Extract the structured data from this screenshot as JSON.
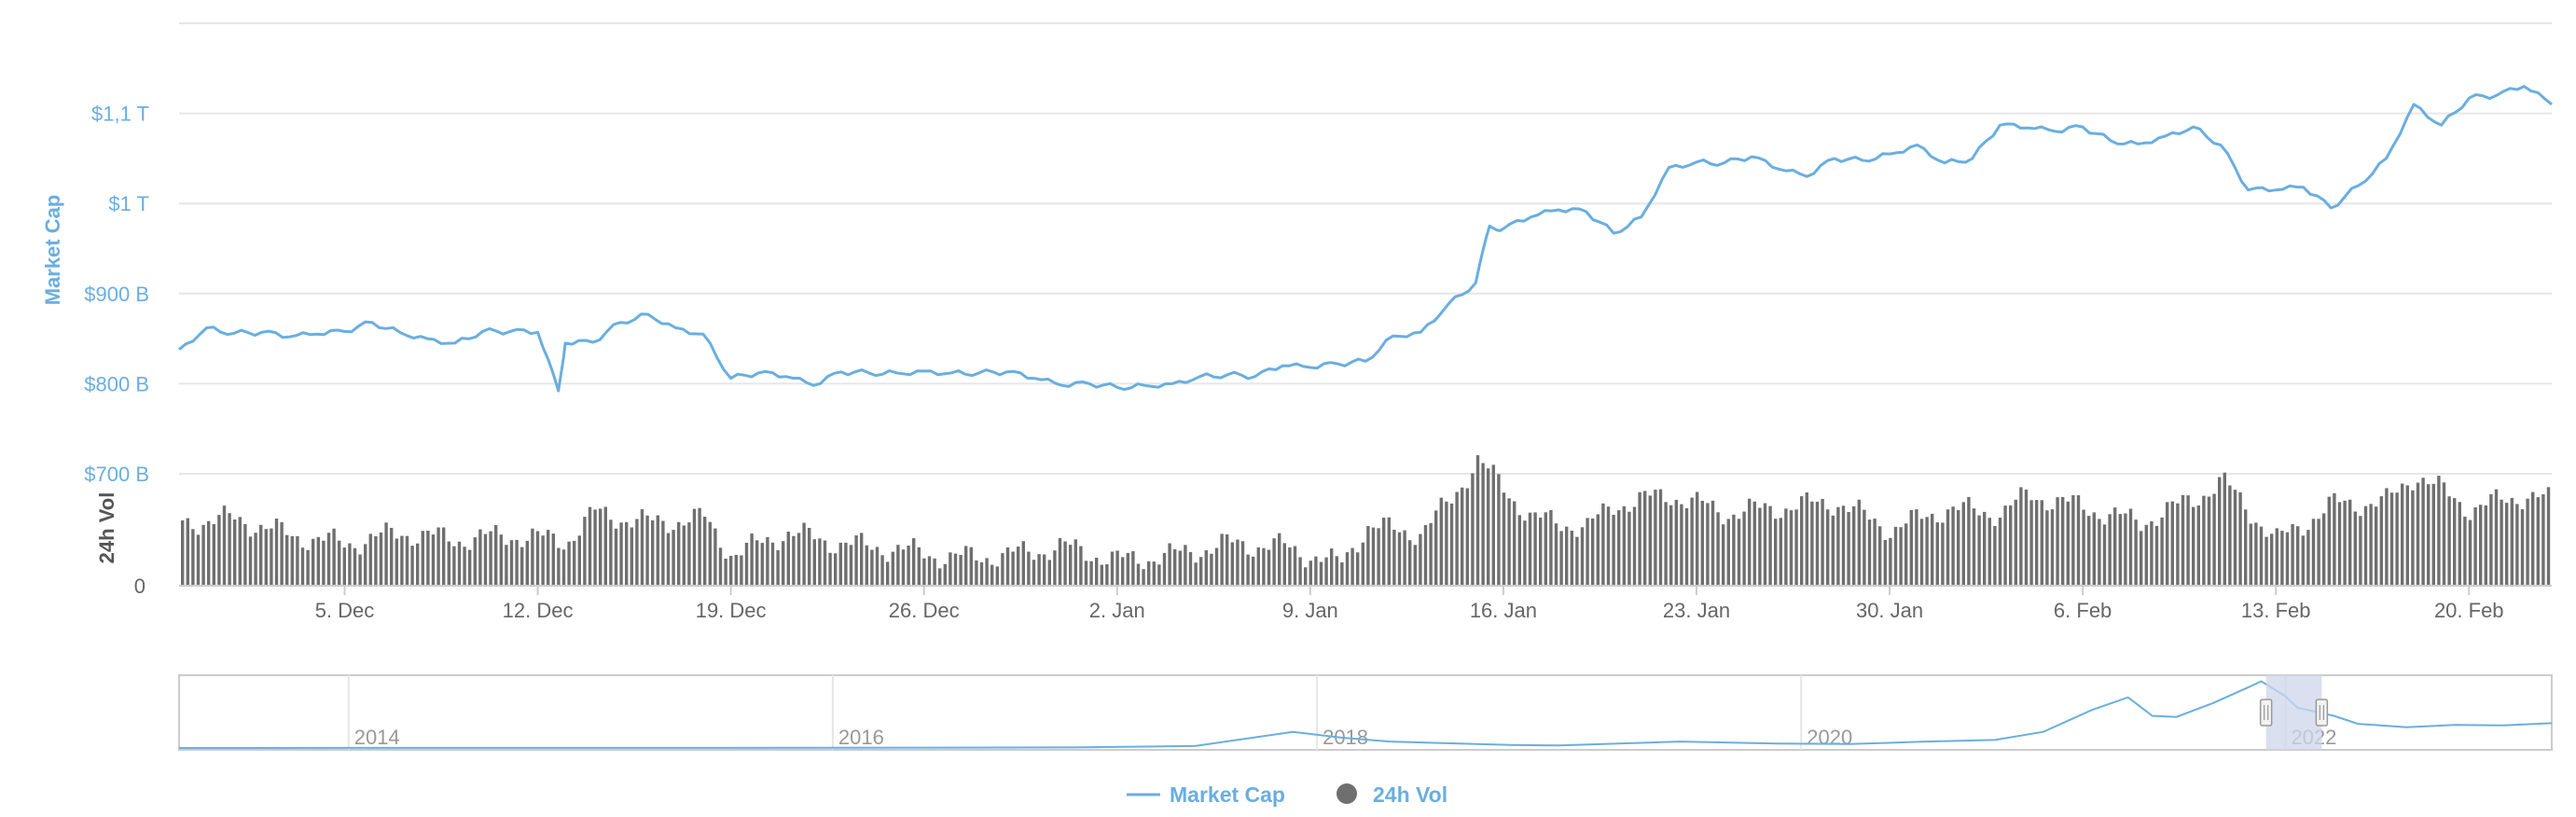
{
  "colors": {
    "market_cap": "#6aaee0",
    "volume": "#6f6f6f",
    "grid": "#e6e6e6",
    "axis_text": "#666666",
    "nav_mask": "#cdd5ea",
    "background": "#ffffff"
  },
  "chart_data": {
    "type": "line",
    "title": "",
    "legend_position": "bottom-center",
    "grid": true,
    "legend": [
      {
        "name": "Market Cap",
        "marker": "line"
      },
      {
        "name": "24h Vol",
        "marker": "circle"
      }
    ],
    "y_axis_market_cap": {
      "label": "Market Cap",
      "range": [
        700,
        1200
      ],
      "ticks": [
        {
          "value": 700,
          "label": "$700 B"
        },
        {
          "value": 800,
          "label": "$800 B"
        },
        {
          "value": 900,
          "label": "$900 B"
        },
        {
          "value": 1000,
          "label": "$1 T"
        },
        {
          "value": 1100,
          "label": "$1,1 T"
        }
      ]
    },
    "y_axis_volume": {
      "label": "24h Vol",
      "ticks": [
        {
          "value": 0,
          "label": "0"
        }
      ]
    },
    "x_axis": {
      "range": [
        "2021-11-29",
        "2022-02-23"
      ],
      "ticks": [
        {
          "date": "2021-12-05",
          "label": "5. Dec"
        },
        {
          "date": "2021-12-12",
          "label": "12. Dec"
        },
        {
          "date": "2021-12-19",
          "label": "19. Dec"
        },
        {
          "date": "2021-12-26",
          "label": "26. Dec"
        },
        {
          "date": "2022-01-02",
          "label": "2. Jan"
        },
        {
          "date": "2022-01-09",
          "label": "9. Jan"
        },
        {
          "date": "2022-01-16",
          "label": "16. Jan"
        },
        {
          "date": "2022-01-23",
          "label": "23. Jan"
        },
        {
          "date": "2022-01-30",
          "label": "30. Jan"
        },
        {
          "date": "2022-02-06",
          "label": "6. Feb"
        },
        {
          "date": "2022-02-13",
          "label": "13. Feb"
        },
        {
          "date": "2022-02-20",
          "label": "20. Feb"
        }
      ]
    },
    "series": [
      {
        "name": "Market Cap",
        "unit": "B USD",
        "points": [
          [
            "2021-11-29",
            838
          ],
          [
            "2021-11-30",
            862
          ],
          [
            "2021-12-01",
            856
          ],
          [
            "2021-12-02",
            857
          ],
          [
            "2021-12-03",
            852
          ],
          [
            "2021-12-04",
            855
          ],
          [
            "2021-12-05",
            858
          ],
          [
            "2021-12-06",
            868
          ],
          [
            "2021-12-07",
            857
          ],
          [
            "2021-12-08",
            850
          ],
          [
            "2021-12-09",
            845
          ],
          [
            "2021-12-10",
            858
          ],
          [
            "2021-12-11",
            858
          ],
          [
            "2021-12-12",
            857
          ],
          [
            "2021-12-12T18",
            792
          ],
          [
            "2021-12-13",
            845
          ],
          [
            "2021-12-14",
            846
          ],
          [
            "2021-12-15",
            868
          ],
          [
            "2021-12-16",
            877
          ],
          [
            "2021-12-17",
            862
          ],
          [
            "2021-12-18",
            855
          ],
          [
            "2021-12-19",
            806
          ],
          [
            "2021-12-20",
            812
          ],
          [
            "2021-12-21",
            808
          ],
          [
            "2021-12-22",
            798
          ],
          [
            "2021-12-23",
            813
          ],
          [
            "2021-12-24",
            812
          ],
          [
            "2021-12-25",
            812
          ],
          [
            "2021-12-26",
            814
          ],
          [
            "2021-12-27",
            812
          ],
          [
            "2021-12-28",
            812
          ],
          [
            "2021-12-29",
            813
          ],
          [
            "2021-12-30",
            806
          ],
          [
            "2021-12-31",
            798
          ],
          [
            "2022-01-01",
            800
          ],
          [
            "2022-01-02",
            796
          ],
          [
            "2022-01-03",
            798
          ],
          [
            "2022-01-04",
            800
          ],
          [
            "2022-01-05",
            808
          ],
          [
            "2022-01-06",
            810
          ],
          [
            "2022-01-07",
            808
          ],
          [
            "2022-01-08",
            820
          ],
          [
            "2022-01-09",
            818
          ],
          [
            "2022-01-10",
            822
          ],
          [
            "2022-01-11",
            825
          ],
          [
            "2022-01-12",
            853
          ],
          [
            "2022-01-13",
            857
          ],
          [
            "2022-01-14",
            888
          ],
          [
            "2022-01-15",
            912
          ],
          [
            "2022-01-15T12",
            975
          ],
          [
            "2022-01-16",
            972
          ],
          [
            "2022-01-17",
            985
          ],
          [
            "2022-01-18",
            993
          ],
          [
            "2022-01-19",
            991
          ],
          [
            "2022-01-20",
            967
          ],
          [
            "2022-01-21",
            985
          ],
          [
            "2022-01-22",
            1040
          ],
          [
            "2022-01-23",
            1046
          ],
          [
            "2022-01-24",
            1045
          ],
          [
            "2022-01-25",
            1052
          ],
          [
            "2022-01-26",
            1038
          ],
          [
            "2022-01-27",
            1030
          ],
          [
            "2022-01-28",
            1050
          ],
          [
            "2022-01-29",
            1048
          ],
          [
            "2022-01-30",
            1055
          ],
          [
            "2022-01-31",
            1065
          ],
          [
            "2022-02-01",
            1045
          ],
          [
            "2022-02-02",
            1050
          ],
          [
            "2022-02-03",
            1087
          ],
          [
            "2022-02-04",
            1084
          ],
          [
            "2022-02-05",
            1080
          ],
          [
            "2022-02-06",
            1085
          ],
          [
            "2022-02-07",
            1070
          ],
          [
            "2022-02-08",
            1066
          ],
          [
            "2022-02-09",
            1075
          ],
          [
            "2022-02-10",
            1085
          ],
          [
            "2022-02-11",
            1065
          ],
          [
            "2022-02-12",
            1015
          ],
          [
            "2022-02-13",
            1015
          ],
          [
            "2022-02-14",
            1018
          ],
          [
            "2022-02-15",
            995
          ],
          [
            "2022-02-16",
            1020
          ],
          [
            "2022-02-17",
            1050
          ],
          [
            "2022-02-18",
            1110
          ],
          [
            "2022-02-19",
            1087
          ],
          [
            "2022-02-20",
            1117
          ],
          [
            "2022-02-21",
            1120
          ],
          [
            "2022-02-22",
            1130
          ],
          [
            "2022-02-23",
            1110
          ]
        ]
      },
      {
        "name": "24h Vol",
        "type": "column",
        "scale": "relative",
        "points": [
          [
            "2021-11-29",
            0.45
          ],
          [
            "2021-12-01",
            0.48
          ],
          [
            "2021-12-03",
            0.36
          ],
          [
            "2021-12-05",
            0.3
          ],
          [
            "2021-12-07",
            0.38
          ],
          [
            "2021-12-09",
            0.33
          ],
          [
            "2021-12-11",
            0.36
          ],
          [
            "2021-12-13",
            0.32
          ],
          [
            "2021-12-14",
            0.52
          ],
          [
            "2021-12-16",
            0.45
          ],
          [
            "2021-12-18",
            0.48
          ],
          [
            "2021-12-19",
            0.22
          ],
          [
            "2021-12-21",
            0.38
          ],
          [
            "2021-12-23",
            0.3
          ],
          [
            "2021-12-25",
            0.26
          ],
          [
            "2021-12-27",
            0.2
          ],
          [
            "2021-12-29",
            0.22
          ],
          [
            "2021-12-31",
            0.28
          ],
          [
            "2022-01-02",
            0.18
          ],
          [
            "2022-01-04",
            0.22
          ],
          [
            "2022-01-06",
            0.3
          ],
          [
            "2022-01-08",
            0.28
          ],
          [
            "2022-01-10",
            0.15
          ],
          [
            "2022-01-11",
            0.42
          ],
          [
            "2022-01-13",
            0.38
          ],
          [
            "2022-01-14",
            0.6
          ],
          [
            "2022-01-15",
            0.9
          ],
          [
            "2022-01-17",
            0.48
          ],
          [
            "2022-01-19",
            0.42
          ],
          [
            "2022-01-20",
            0.58
          ],
          [
            "2022-01-22",
            0.65
          ],
          [
            "2022-01-24",
            0.52
          ],
          [
            "2022-01-26",
            0.56
          ],
          [
            "2022-01-28",
            0.6
          ],
          [
            "2022-01-30",
            0.4
          ],
          [
            "2022-02-01",
            0.55
          ],
          [
            "2022-02-03",
            0.52
          ],
          [
            "2022-02-04",
            0.65
          ],
          [
            "2022-02-06",
            0.56
          ],
          [
            "2022-02-08",
            0.45
          ],
          [
            "2022-02-10",
            0.62
          ],
          [
            "2022-02-11",
            0.75
          ],
          [
            "2022-02-13",
            0.32
          ],
          [
            "2022-02-15",
            0.58
          ],
          [
            "2022-02-17",
            0.6
          ],
          [
            "2022-02-18",
            0.8
          ],
          [
            "2022-02-20",
            0.55
          ],
          [
            "2022-02-22",
            0.65
          ],
          [
            "2022-02-23",
            0.6
          ]
        ]
      }
    ],
    "navigator": {
      "ticks": [
        {
          "year": 2014,
          "label": "2014"
        },
        {
          "year": 2016,
          "label": "2016"
        },
        {
          "year": 2018,
          "label": "2018"
        },
        {
          "year": 2020,
          "label": "2020"
        },
        {
          "year": 2022,
          "label": "2022"
        }
      ],
      "range": [
        2013.3,
        2023.1
      ],
      "selected": [
        2021.92,
        2022.15
      ],
      "points": [
        [
          2013.3,
          2
        ],
        [
          2014.0,
          6
        ],
        [
          2015.0,
          4
        ],
        [
          2016.0,
          8
        ],
        [
          2017.0,
          25
        ],
        [
          2017.5,
          90
        ],
        [
          2017.9,
          700
        ],
        [
          2018.1,
          450
        ],
        [
          2018.3,
          280
        ],
        [
          2018.8,
          130
        ],
        [
          2019.0,
          110
        ],
        [
          2019.5,
          280
        ],
        [
          2019.9,
          190
        ],
        [
          2020.2,
          170
        ],
        [
          2020.5,
          270
        ],
        [
          2020.8,
          350
        ],
        [
          2021.0,
          700
        ],
        [
          2021.2,
          1650
        ],
        [
          2021.35,
          2200
        ],
        [
          2021.45,
          1400
        ],
        [
          2021.55,
          1350
        ],
        [
          2021.7,
          1950
        ],
        [
          2021.85,
          2650
        ],
        [
          2021.9,
          2900
        ],
        [
          2022.0,
          2250
        ],
        [
          2022.05,
          1750
        ],
        [
          2022.2,
          1400
        ],
        [
          2022.3,
          1050
        ],
        [
          2022.5,
          900
        ],
        [
          2022.7,
          1000
        ],
        [
          2022.9,
          980
        ],
        [
          2023.1,
          1080
        ]
      ]
    }
  }
}
